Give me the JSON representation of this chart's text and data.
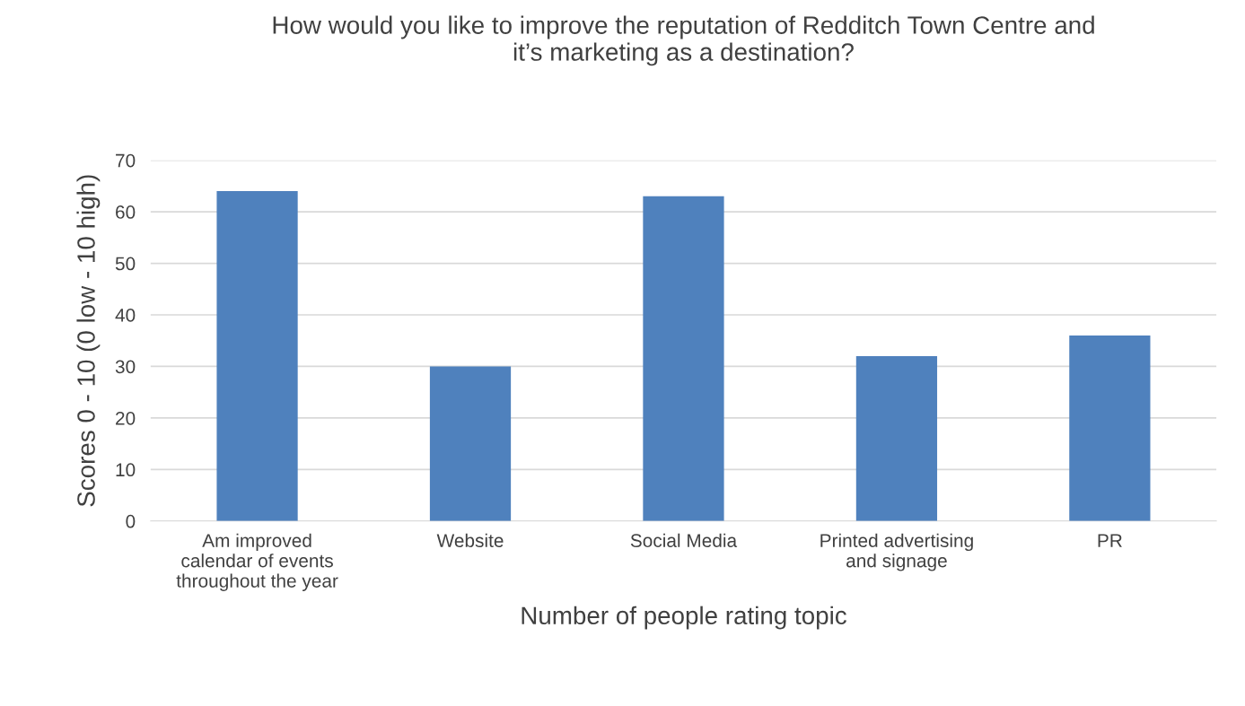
{
  "chart_data": {
    "type": "bar",
    "title": "How would you like to improve the reputation of Redditch Town Centre and\nit’s marketing as a destination?",
    "xlabel": "Number of people rating topic",
    "ylabel": "Scores 0 - 10 (0 low - 10 high)",
    "categories": [
      "Am improved\ncalendar of events\nthroughout the year",
      "Website",
      "Social Media",
      "Printed advertising\nand signage",
      "PR"
    ],
    "values": [
      64,
      30,
      63,
      32,
      36
    ],
    "color": "#4f81bd",
    "ylim": [
      0,
      70
    ],
    "yticks": [
      0,
      10,
      20,
      30,
      40,
      50,
      60,
      70
    ],
    "grid": "y"
  }
}
